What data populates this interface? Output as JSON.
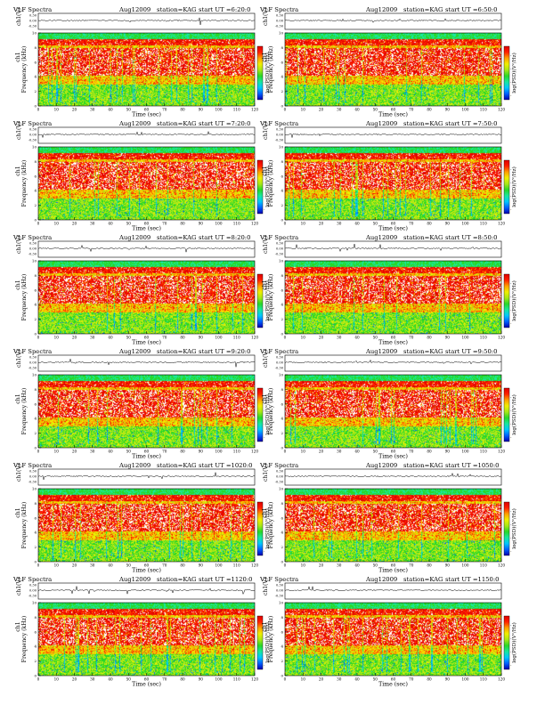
{
  "labels": {
    "title": "VLF Spectra",
    "date": "Aug12009",
    "station": "station=KAG",
    "start_prefix": "start  UT =",
    "ylabel_top": "ch1(V)",
    "ylabel_main": "ch1",
    "ylabel_freq": "Frequency (kHz)",
    "xlabel": "Time (sec)",
    "colorbar_label": "log(PSD)(V²/Hz)"
  },
  "colors": {
    "spectrogram_scale": [
      "#0000b0",
      "#0060ff",
      "#00c8ff",
      "#18e8a0",
      "#28d828",
      "#a8e818",
      "#f0f000",
      "#ffa000",
      "#ff2000",
      "#e00000",
      "#ffffff"
    ],
    "trace": "#000000"
  },
  "chart_data": [
    {
      "type": "heatmap",
      "start_ut": "6:20:0",
      "column": "left",
      "row": 1
    },
    {
      "type": "heatmap",
      "start_ut": "6:50:0",
      "column": "right",
      "row": 1
    },
    {
      "type": "heatmap",
      "start_ut": "7:20:0",
      "column": "left",
      "row": 2
    },
    {
      "type": "heatmap",
      "start_ut": "7:50:0",
      "column": "right",
      "row": 2
    },
    {
      "type": "heatmap",
      "start_ut": "8:20:0",
      "column": "left",
      "row": 3
    },
    {
      "type": "heatmap",
      "start_ut": "8:50:0",
      "column": "right",
      "row": 3
    },
    {
      "type": "heatmap",
      "start_ut": "9:20:0",
      "column": "left",
      "row": 4
    },
    {
      "type": "heatmap",
      "start_ut": "9:50:0",
      "column": "right",
      "row": 4
    },
    {
      "type": "heatmap",
      "start_ut": "1020:0",
      "column": "left",
      "row": 5
    },
    {
      "type": "heatmap",
      "start_ut": "1050:0",
      "column": "right",
      "row": 5
    },
    {
      "type": "heatmap",
      "start_ut": "1120:0",
      "column": "left",
      "row": 6
    },
    {
      "type": "heatmap",
      "start_ut": "1150:0",
      "column": "right",
      "row": 6
    }
  ],
  "shared_axes": {
    "x": {
      "label": "Time (sec)",
      "range": [
        0,
        120
      ],
      "ticks": [
        0,
        10,
        20,
        30,
        40,
        50,
        60,
        70,
        80,
        90,
        100,
        110,
        120
      ]
    },
    "y_freq": {
      "label": "Frequency (kHz)",
      "range": [
        0,
        10
      ],
      "ticks": [
        0,
        2,
        4,
        6,
        8,
        10
      ]
    },
    "y_trace": {
      "label": "ch1 (V)",
      "ticks": [
        0.3,
        0.0,
        -0.3
      ],
      "tick_labels": [
        "0.30",
        "0.00",
        "-0.30"
      ]
    },
    "colorbar_ticks": [
      "-",
      "-",
      "-",
      "-"
    ]
  }
}
